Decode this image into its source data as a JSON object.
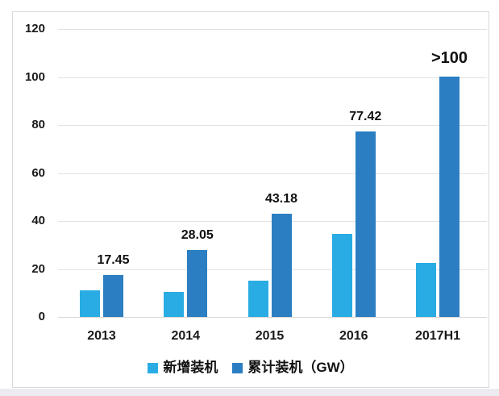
{
  "chart_data": {
    "type": "bar",
    "title": "",
    "xlabel": "",
    "ylabel": "",
    "categories": [
      "2013",
      "2014",
      "2015",
      "2016",
      "2017H1"
    ],
    "series": [
      {
        "name": "新增装机",
        "color": "#29ACE3",
        "values": [
          11,
          10.5,
          15,
          34.5,
          22.5
        ],
        "labels": [
          "",
          "",
          "",
          "",
          ""
        ]
      },
      {
        "name": "累计装机（GW）",
        "color": "#2B7EC1",
        "values": [
          17.45,
          28.05,
          43.18,
          77.42,
          100.3
        ],
        "labels": [
          "17.45",
          "28.05",
          "43.18",
          "77.42",
          ">100"
        ]
      }
    ],
    "ylim": [
      0,
      120
    ],
    "yticks": [
      0,
      20,
      40,
      60,
      80,
      100,
      120
    ],
    "grid": true,
    "legend_position": "bottom"
  },
  "colors": {
    "series_new": "#29ACE3",
    "series_cumulative": "#2B7EC1",
    "gridline": "#e2e2e2",
    "frame_border": "#d9d9d9",
    "text": "#1a1a1a"
  }
}
